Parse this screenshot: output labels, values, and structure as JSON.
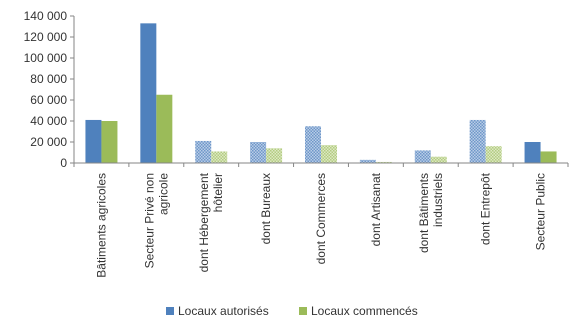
{
  "chart_data": {
    "type": "bar",
    "categories": [
      [
        "Bâtiments agricoles"
      ],
      [
        "Secteur Privé non",
        "agricole"
      ],
      [
        "dont Hébergement",
        "hôtelier"
      ],
      [
        "dont Bureaux"
      ],
      [
        "dont Commerces"
      ],
      [
        "dont Artisanat"
      ],
      [
        "dont Bâtiments",
        "industriels"
      ],
      [
        "dont Entrepôt"
      ],
      [
        "Secteur Public"
      ]
    ],
    "series": [
      {
        "name": "Locaux autorisés",
        "values": [
          41000,
          133000,
          21000,
          20000,
          35000,
          3000,
          12000,
          41000,
          20000
        ]
      },
      {
        "name": "Locaux commencés",
        "values": [
          40000,
          65000,
          11000,
          14000,
          17000,
          1000,
          6000,
          16000,
          11000
        ]
      }
    ],
    "patterned_categories": [
      2,
      3,
      4,
      5,
      6,
      7
    ],
    "ylim": [
      0,
      140000
    ],
    "yticks": [
      "0",
      "20 000",
      "40 000",
      "60 000",
      "80 000",
      "100 000",
      "120 000",
      "140 000"
    ],
    "ytick_values": [
      0,
      20000,
      40000,
      60000,
      80000,
      100000,
      120000,
      140000
    ],
    "grid": false,
    "legend_position": "bottom",
    "colors": {
      "series_1": "#4f81bd",
      "series_2": "#9bbb59",
      "axis": "#868686",
      "text": "#333333"
    }
  }
}
